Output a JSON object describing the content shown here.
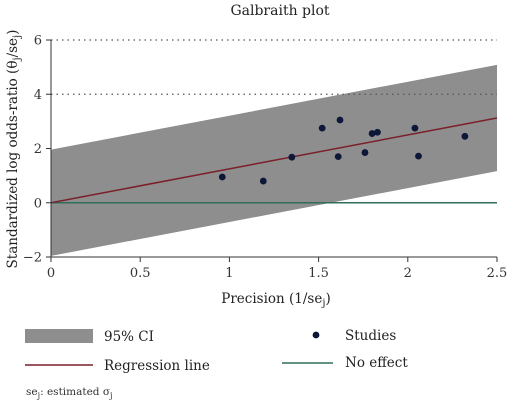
{
  "chart_data": {
    "type": "scatter",
    "title": "Galbraith plot",
    "xlabel": "Precision (1/se",
    "xlabel_sub": "j",
    "xlabel_end": ")",
    "ylabel": "Standardized log odds-ratio (θ",
    "ylabel_sub1": "j",
    "ylabel_mid": "/se",
    "ylabel_sub2": "j",
    "ylabel_end": ")",
    "xlim": [
      0,
      2.5
    ],
    "ylim": [
      -2,
      6
    ],
    "x_ticks": [
      0,
      0.5,
      1,
      1.5,
      2,
      2.5
    ],
    "x_tick_labels": [
      "0",
      "0.5",
      "1",
      "1.5",
      "2",
      "2.5"
    ],
    "y_ticks": [
      -2,
      0,
      2,
      4,
      6
    ],
    "y_tick_labels": [
      "−2",
      "0",
      "2",
      "4",
      "6"
    ],
    "dotted_gridlines_y": [
      4,
      6
    ],
    "regression_line": {
      "intercept": 0.0,
      "slope": 1.25
    },
    "ci_band": {
      "lower_intercept": -1.96,
      "upper_intercept": 1.96,
      "slope": 1.25
    },
    "no_effect_y": 0,
    "series": [
      {
        "name": "Studies",
        "x": [
          0.96,
          1.19,
          1.35,
          1.52,
          1.61,
          1.62,
          1.76,
          1.8,
          1.83,
          2.04,
          2.06,
          2.32
        ],
        "y": [
          0.95,
          0.8,
          1.68,
          2.75,
          1.7,
          3.05,
          1.85,
          2.55,
          2.6,
          2.75,
          1.72,
          2.45
        ]
      }
    ],
    "legend": {
      "ci_label": "95% CI",
      "regression_label": "Regression line",
      "studies_label": "Studies",
      "no_effect_label": "No effect"
    },
    "footnote": {
      "prefix": "se",
      "prefix_sub": "j",
      "text": ": estimated σ",
      "text_sub": "j"
    },
    "colors": {
      "ci_band": "#8e8e8e",
      "regression": "#7b1f2a",
      "no_effect": "#2e6e5a",
      "points": "#0d1738",
      "axis": "#333333",
      "grid": "#555555"
    }
  }
}
